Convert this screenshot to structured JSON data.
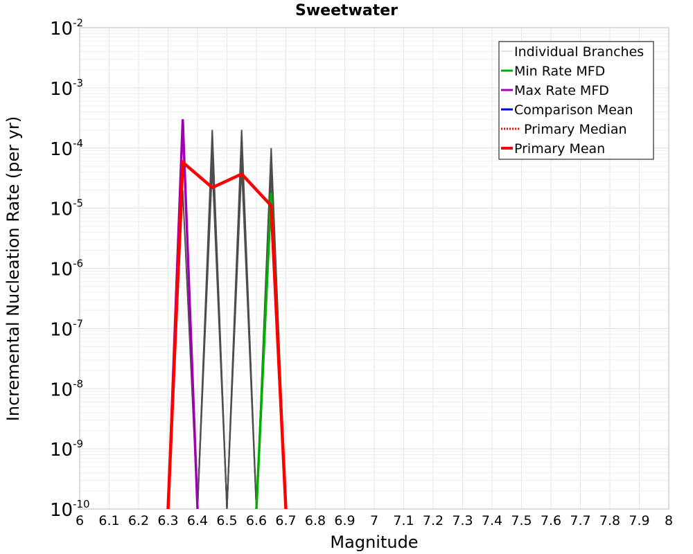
{
  "chart_data": {
    "type": "line",
    "title": "Sweetwater",
    "xlabel": "Magnitude",
    "ylabel": "Incremental Nucleation Rate (per yr)",
    "xlim": [
      6,
      8
    ],
    "ylim": [
      1e-10,
      0.01
    ],
    "yscale": "log",
    "grid": true,
    "x_ticks": [
      "6",
      "6.1",
      "6.2",
      "6.3",
      "6.4",
      "6.5",
      "6.6",
      "6.7",
      "6.8",
      "6.9",
      "7",
      "7.1",
      "7.2",
      "7.3",
      "7.4",
      "7.5",
      "7.6",
      "7.7",
      "7.8",
      "7.9",
      "8"
    ],
    "y_ticks": [
      {
        "base": "10",
        "exp": "-10"
      },
      {
        "base": "10",
        "exp": "-9"
      },
      {
        "base": "10",
        "exp": "-8"
      },
      {
        "base": "10",
        "exp": "-7"
      },
      {
        "base": "10",
        "exp": "-6"
      },
      {
        "base": "10",
        "exp": "-5"
      },
      {
        "base": "10",
        "exp": "-4"
      },
      {
        "base": "10",
        "exp": "-3"
      },
      {
        "base": "10",
        "exp": "-2"
      }
    ],
    "legend_position": "top-right",
    "series": [
      {
        "name": "Individual Branches",
        "color": "#4d4d4d",
        "style": "thin",
        "branches": [
          {
            "x": [
              6.3,
              6.35,
              6.4
            ],
            "y": [
              1e-10,
              0.0003,
              1e-10
            ]
          },
          {
            "x": [
              6.3,
              6.35,
              6.4
            ],
            "y": [
              1e-10,
              2e-05,
              1e-10
            ]
          },
          {
            "x": [
              6.4,
              6.45,
              6.5
            ],
            "y": [
              1e-10,
              0.0002,
              1e-10
            ]
          },
          {
            "x": [
              6.4,
              6.45,
              6.5
            ],
            "y": [
              1e-10,
              0.00015,
              1e-10
            ]
          },
          {
            "x": [
              6.4,
              6.45,
              6.5
            ],
            "y": [
              1e-10,
              0.0001,
              1e-10
            ]
          },
          {
            "x": [
              6.4,
              6.45,
              6.5
            ],
            "y": [
              1e-10,
              5e-05,
              1e-10
            ]
          },
          {
            "x": [
              6.5,
              6.55,
              6.6
            ],
            "y": [
              1e-10,
              0.0002,
              1e-10
            ]
          },
          {
            "x": [
              6.5,
              6.55,
              6.6
            ],
            "y": [
              1e-10,
              0.00015,
              1e-10
            ]
          },
          {
            "x": [
              6.5,
              6.55,
              6.6
            ],
            "y": [
              1e-10,
              0.0001,
              1e-10
            ]
          },
          {
            "x": [
              6.5,
              6.55,
              6.6
            ],
            "y": [
              1e-10,
              5e-05,
              1e-10
            ]
          },
          {
            "x": [
              6.6,
              6.65,
              6.7
            ],
            "y": [
              1e-10,
              0.0001,
              1e-10
            ]
          },
          {
            "x": [
              6.6,
              6.65,
              6.7
            ],
            "y": [
              1e-10,
              7e-05,
              1e-10
            ]
          },
          {
            "x": [
              6.6,
              6.65,
              6.7
            ],
            "y": [
              1e-10,
              4e-05,
              1e-10
            ]
          },
          {
            "x": [
              6.6,
              6.65,
              6.7
            ],
            "y": [
              1e-10,
              2e-05,
              1e-10
            ]
          }
        ]
      },
      {
        "name": "Min Rate MFD",
        "color": "#00b000",
        "style": "solid",
        "x": [
          6.6,
          6.65,
          6.7
        ],
        "y": [
          1e-10,
          1.8e-05,
          1e-10
        ]
      },
      {
        "name": "Max Rate MFD",
        "color": "#a000b0",
        "style": "solid",
        "x": [
          6.3,
          6.35,
          6.4
        ],
        "y": [
          1e-10,
          0.0003,
          1e-10
        ]
      },
      {
        "name": "Comparison Mean",
        "color": "#0000e0",
        "style": "solid",
        "x": [],
        "y": []
      },
      {
        "name": "Primary Median",
        "color": "#ff0000",
        "style": "dotted",
        "x": [],
        "y": []
      },
      {
        "name": "Primary Mean",
        "color": "#ff0000",
        "style": "thick",
        "x": [
          6.3,
          6.35,
          6.45,
          6.55,
          6.65,
          6.7
        ],
        "y": [
          1e-10,
          5.8e-05,
          2.2e-05,
          3.7e-05,
          1.1e-05,
          1e-10
        ]
      }
    ]
  }
}
